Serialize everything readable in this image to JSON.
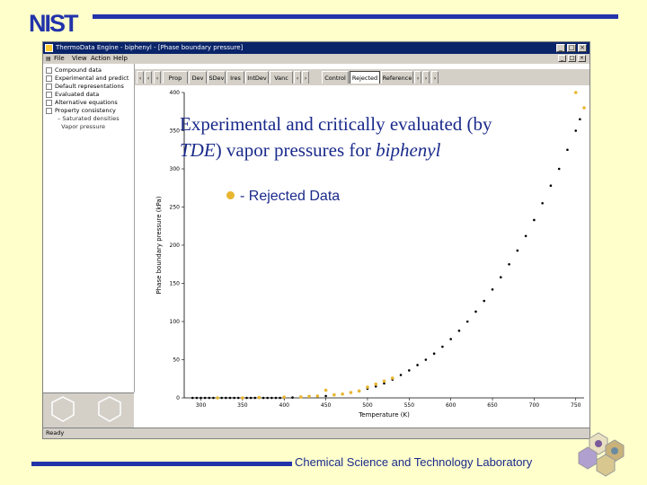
{
  "slide": {
    "logo_text": "NIST",
    "title_line1": "Experimental and critically evaluated (by",
    "title_tde": "TDE",
    "title_mid": ") vapor pressures for ",
    "title_compound": "biphenyl",
    "legend_label": "- Rejected Data",
    "lab_name": "Chemical Science and Technology Laboratory",
    "accent_color": "#2233aa",
    "text_color": "#1a2a8a",
    "rejected_color": "#e8b630"
  },
  "window": {
    "title": "ThermoData Engine - biphenyl - [Phase boundary pressure]",
    "menu": [
      "File",
      "View",
      "Action",
      "Help"
    ],
    "tree": [
      "Compound data",
      "Experimental and predict",
      "Default representations",
      "Evaluated data",
      "Alternative equations",
      "Property consistency"
    ],
    "tree_sub": [
      "Saturated densities",
      "Vapor pressure"
    ],
    "tabs": [
      "Prop",
      "Dev",
      "SDev",
      "Ires",
      "IntDev",
      "Vanc",
      "",
      "Control",
      "Rejected",
      "Reference"
    ],
    "active_tab": "Rejected",
    "status": "Ready"
  },
  "chart_data": {
    "type": "scatter",
    "xlabel": "Temperature (K)",
    "ylabel": "Phase boundary pressure (kPa)",
    "x_ticks": [
      300,
      350,
      400,
      450,
      500,
      550,
      600,
      650,
      700,
      750
    ],
    "y_ticks": [
      0,
      50,
      100,
      150,
      200,
      250,
      300,
      350,
      400
    ],
    "xlim": [
      280,
      760
    ],
    "ylim": [
      0,
      400
    ],
    "series": [
      {
        "color": "#000000",
        "x": [
          290,
          295,
          300,
          305,
          310,
          315,
          320,
          325,
          330,
          335,
          340,
          345,
          350,
          355,
          360,
          365,
          370,
          375,
          380,
          385,
          390,
          395,
          400,
          410,
          420,
          430,
          440,
          450,
          460,
          470,
          480,
          490,
          500,
          510,
          520,
          530,
          540,
          550,
          560,
          570,
          580,
          590,
          600,
          610,
          620,
          630,
          640,
          650,
          660,
          670,
          680,
          690,
          700,
          710,
          720,
          730,
          740,
          750,
          755
        ],
        "y": [
          0,
          0,
          0,
          0,
          0,
          0,
          0,
          0,
          0,
          0,
          0,
          0,
          0,
          0,
          0,
          0,
          0,
          0,
          0,
          0,
          0,
          0,
          0,
          0.5,
          1,
          1.5,
          2,
          2.5,
          4,
          5,
          7,
          9,
          12,
          15,
          19,
          24,
          30,
          36,
          43,
          50,
          58,
          67,
          77,
          88,
          100,
          113,
          127,
          142,
          158,
          175,
          193,
          212,
          233,
          255,
          278,
          300,
          325,
          350,
          365
        ]
      },
      {
        "color": "#e8b630",
        "x": [
          320,
          350,
          370,
          400,
          420,
          430,
          440,
          450,
          460,
          470,
          480,
          490,
          500,
          510,
          520,
          530,
          750,
          760
        ],
        "y": [
          0,
          0,
          0.5,
          1,
          1.2,
          2,
          2.5,
          10,
          4,
          5,
          7,
          9,
          14,
          18,
          22,
          26,
          400,
          380
        ]
      }
    ]
  }
}
